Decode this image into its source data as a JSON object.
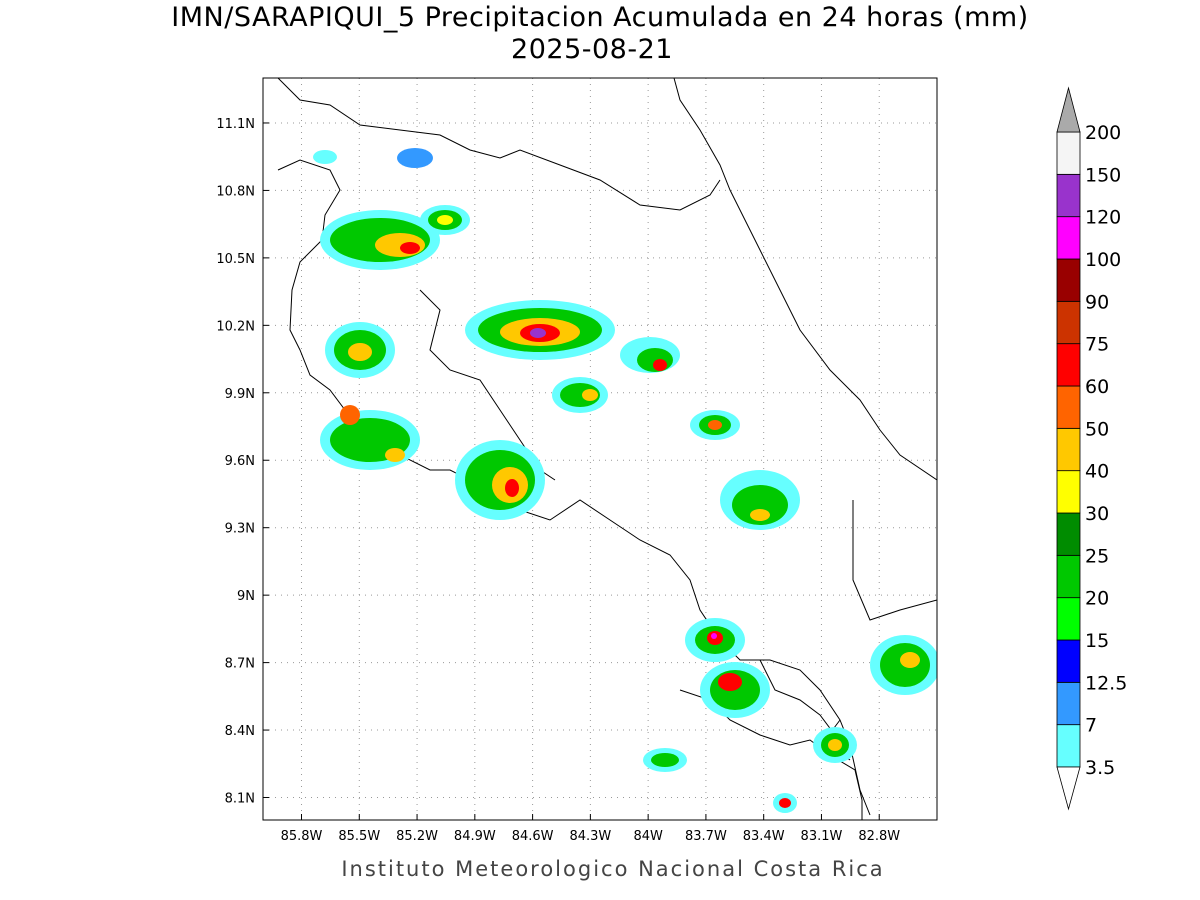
{
  "map": {
    "title": "IMN/SARAPIQUI_5 Precipitacion Acumulada en 24 horas (mm)",
    "subtitle": "2025-08-21",
    "footer": "Instituto Meteorologico Nacional Costa Rica",
    "xlim": [
      -86.0,
      -82.5
    ],
    "ylim": [
      8.0,
      11.3
    ],
    "xticks": [
      {
        "value": -85.8,
        "label": "85.8W"
      },
      {
        "value": -85.5,
        "label": "85.5W"
      },
      {
        "value": -85.2,
        "label": "85.2W"
      },
      {
        "value": -84.9,
        "label": "84.9W"
      },
      {
        "value": -84.6,
        "label": "84.6W"
      },
      {
        "value": -84.3,
        "label": "84.3W"
      },
      {
        "value": -84.0,
        "label": "84W"
      },
      {
        "value": -83.7,
        "label": "83.7W"
      },
      {
        "value": -83.4,
        "label": "83.4W"
      },
      {
        "value": -83.1,
        "label": "83.1W"
      },
      {
        "value": -82.8,
        "label": "82.8W"
      }
    ],
    "yticks": [
      {
        "value": 11.1,
        "label": "11.1N"
      },
      {
        "value": 10.8,
        "label": "10.8N"
      },
      {
        "value": 10.5,
        "label": "10.5N"
      },
      {
        "value": 10.2,
        "label": "10.2N"
      },
      {
        "value": 9.9,
        "label": "9.9N"
      },
      {
        "value": 9.6,
        "label": "9.6N"
      },
      {
        "value": 9.3,
        "label": "9.3N"
      },
      {
        "value": 9.0,
        "label": "9N"
      },
      {
        "value": 8.7,
        "label": "8.7N"
      },
      {
        "value": 8.4,
        "label": "8.4N"
      },
      {
        "value": 8.1,
        "label": "8.1N"
      }
    ],
    "grid": true
  },
  "colorbar": {
    "levels": [
      3.5,
      7,
      12.5,
      15,
      20,
      25,
      30,
      40,
      50,
      60,
      75,
      90,
      100,
      120,
      150,
      200
    ],
    "colors": [
      "#66ffff",
      "#3399ff",
      "#0000ff",
      "#00ff00",
      "#00c800",
      "#008c00",
      "#ffff00",
      "#ffc800",
      "#ff6400",
      "#ff0000",
      "#cc3300",
      "#990000",
      "#ff00ff",
      "#9933cc",
      "#f5f5f5"
    ],
    "under_color": "#ffffff",
    "over_color": "#aaaaaa"
  }
}
